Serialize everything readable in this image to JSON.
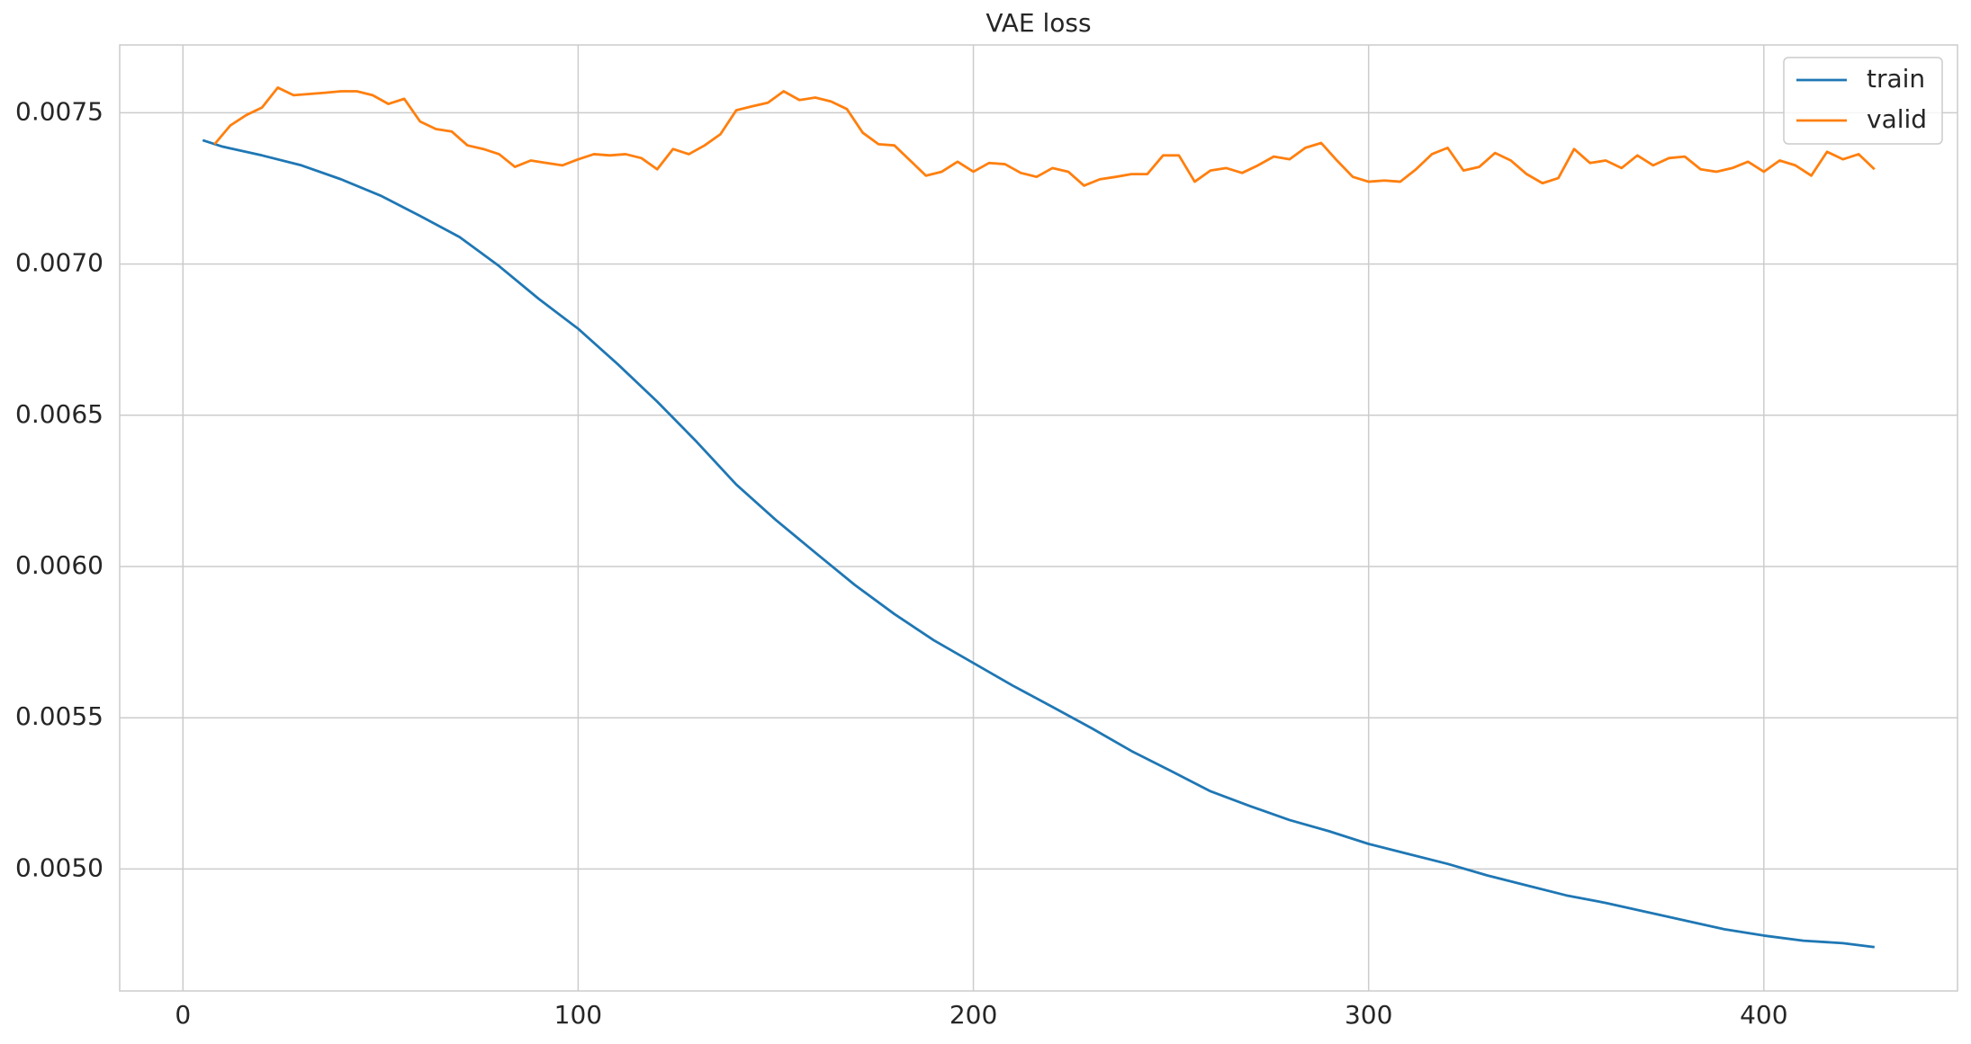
{
  "chart_data": {
    "type": "line",
    "title": "VAE loss",
    "xlim": [
      -16,
      449
    ],
    "xticks": [
      0,
      100,
      200,
      300,
      400
    ],
    "ylim": [
      0.004597,
      0.007724
    ],
    "yticks": [
      {
        "value": 0.005,
        "label": "0.0050"
      },
      {
        "value": 0.0055,
        "label": "0.0055"
      },
      {
        "value": 0.006,
        "label": "0.0060"
      },
      {
        "value": 0.0065,
        "label": "0.0065"
      },
      {
        "value": 0.007,
        "label": "0.0070"
      },
      {
        "value": 0.0075,
        "label": "0.0075"
      }
    ],
    "grid": true,
    "legend": "upper right",
    "series": [
      {
        "name": "train",
        "color": "#1f77b4",
        "x": [
          5,
          10,
          20,
          30,
          40,
          50,
          60,
          70,
          80,
          90,
          100,
          110,
          120,
          130,
          140,
          150,
          160,
          170,
          180,
          190,
          200,
          210,
          220,
          230,
          240,
          250,
          260,
          270,
          280,
          290,
          300,
          310,
          320,
          330,
          340,
          350,
          360,
          370,
          380,
          390,
          400,
          410,
          420,
          428
        ],
        "values": [
          0.007409,
          0.007388,
          0.007359,
          0.007326,
          0.00728,
          0.007226,
          0.007159,
          0.007089,
          0.006993,
          0.006885,
          0.006786,
          0.006669,
          0.006545,
          0.006412,
          0.006271,
          0.006154,
          0.006046,
          0.005939,
          0.005843,
          0.005756,
          0.005681,
          0.005606,
          0.005536,
          0.005465,
          0.00539,
          0.005324,
          0.005257,
          0.005208,
          0.005162,
          0.005125,
          0.005083,
          0.00505,
          0.005017,
          0.004979,
          0.004946,
          0.004913,
          0.004888,
          0.004859,
          0.00483,
          0.004801,
          0.00478,
          0.004763,
          0.004755,
          0.004742
        ]
      },
      {
        "name": "valid",
        "color": "#ff7f0e",
        "x": [
          8,
          12,
          16,
          20,
          24,
          28,
          32,
          36,
          40,
          44,
          48,
          52,
          56,
          60,
          64,
          68,
          72,
          76,
          80,
          84,
          88,
          92,
          96,
          100,
          104,
          108,
          112,
          116,
          120,
          124,
          128,
          132,
          136,
          140,
          144,
          148,
          152,
          156,
          160,
          164,
          168,
          172,
          176,
          180,
          184,
          188,
          192,
          196,
          200,
          204,
          208,
          212,
          216,
          220,
          224,
          228,
          232,
          236,
          240,
          244,
          248,
          252,
          256,
          260,
          264,
          268,
          272,
          276,
          280,
          284,
          288,
          292,
          296,
          300,
          304,
          308,
          312,
          316,
          320,
          324,
          328,
          332,
          336,
          340,
          344,
          348,
          352,
          356,
          360,
          364,
          368,
          372,
          376,
          380,
          384,
          388,
          392,
          396,
          400,
          404,
          408,
          412,
          416,
          420,
          424,
          428
        ],
        "values": [
          0.007396,
          0.007458,
          0.007492,
          0.007517,
          0.007583,
          0.007558,
          0.007562,
          0.007566,
          0.007571,
          0.007571,
          0.007558,
          0.007529,
          0.007546,
          0.007471,
          0.007446,
          0.007438,
          0.007392,
          0.00738,
          0.007363,
          0.007321,
          0.007342,
          0.007334,
          0.007326,
          0.007346,
          0.007363,
          0.007359,
          0.007363,
          0.00735,
          0.007313,
          0.00738,
          0.007363,
          0.007392,
          0.007429,
          0.007508,
          0.007521,
          0.007533,
          0.007571,
          0.007542,
          0.00755,
          0.007537,
          0.007512,
          0.007434,
          0.007396,
          0.007392,
          0.007342,
          0.007292,
          0.007305,
          0.007338,
          0.007305,
          0.007334,
          0.00733,
          0.007301,
          0.007288,
          0.007317,
          0.007305,
          0.007259,
          0.00728,
          0.007288,
          0.007297,
          0.007297,
          0.007359,
          0.007359,
          0.007272,
          0.007309,
          0.007317,
          0.007301,
          0.007326,
          0.007355,
          0.007346,
          0.007384,
          0.0074,
          0.007342,
          0.007288,
          0.007272,
          0.007276,
          0.007272,
          0.007313,
          0.007363,
          0.007384,
          0.007309,
          0.007321,
          0.007367,
          0.007342,
          0.007297,
          0.007267,
          0.007284,
          0.00738,
          0.007334,
          0.007342,
          0.007317,
          0.007359,
          0.007326,
          0.00735,
          0.007355,
          0.007313,
          0.007305,
          0.007317,
          0.007338,
          0.007305,
          0.007342,
          0.007326,
          0.007292,
          0.007371,
          0.007346,
          0.007363,
          0.007313
        ]
      }
    ]
  }
}
